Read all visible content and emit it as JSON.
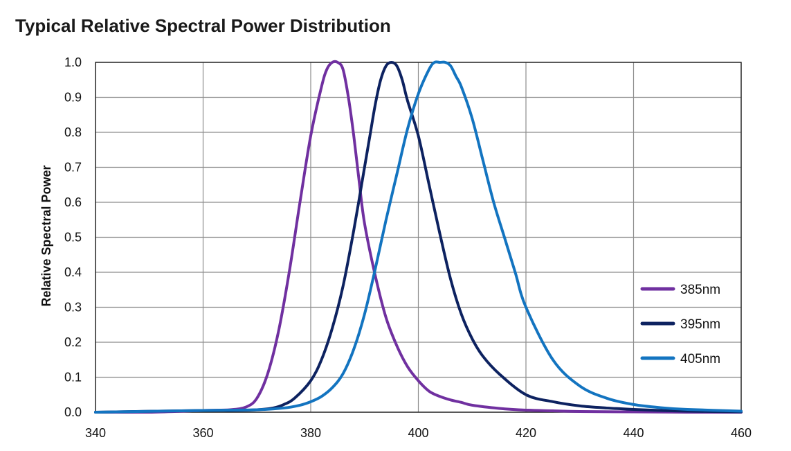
{
  "chart_data": {
    "type": "line",
    "title": "Typical Relative Spectral Power Distribution",
    "xlabel": "",
    "ylabel": "Relative Spectral Power",
    "xlim": [
      340,
      460
    ],
    "ylim": [
      0.0,
      1.0
    ],
    "x_ticks": [
      "340",
      "360",
      "380",
      "400",
      "420",
      "440",
      "460"
    ],
    "y_ticks": [
      "0.0",
      "0.1",
      "0.2",
      "0.3",
      "0.4",
      "0.5",
      "0.6",
      "0.7",
      "0.8",
      "0.9",
      "1.0"
    ],
    "grid": true,
    "legend_position": "right",
    "series": [
      {
        "name": "385nm",
        "color": "#7030A0",
        "x": [
          340,
          350,
          360,
          365,
          368,
          370,
          372,
          374,
          376,
          378,
          380,
          382,
          383,
          384,
          385,
          386,
          387,
          388,
          389,
          390,
          392,
          394,
          396,
          398,
          400,
          402,
          404,
          406,
          408,
          410,
          415,
          420,
          425,
          430,
          440,
          450,
          460
        ],
        "y": [
          0.0,
          0.0,
          0.005,
          0.007,
          0.015,
          0.04,
          0.11,
          0.23,
          0.4,
          0.6,
          0.79,
          0.93,
          0.98,
          1.0,
          1.0,
          0.98,
          0.9,
          0.79,
          0.66,
          0.54,
          0.39,
          0.27,
          0.19,
          0.13,
          0.09,
          0.06,
          0.045,
          0.035,
          0.028,
          0.02,
          0.011,
          0.006,
          0.004,
          0.002,
          0.001,
          0.0,
          0.0
        ]
      },
      {
        "name": "395nm",
        "color": "#0D2260",
        "x": [
          340,
          360,
          365,
          370,
          373,
          375,
          377,
          380,
          382,
          384,
          386,
          388,
          390,
          391,
          392,
          393,
          394,
          395,
          396,
          397,
          398,
          400,
          402,
          404,
          406,
          408,
          410,
          412,
          415,
          420,
          425,
          430,
          435,
          440,
          445,
          450,
          460
        ],
        "y": [
          0.0,
          0.005,
          0.005,
          0.007,
          0.012,
          0.022,
          0.04,
          0.09,
          0.15,
          0.24,
          0.36,
          0.52,
          0.7,
          0.79,
          0.88,
          0.95,
          0.99,
          1.0,
          0.99,
          0.95,
          0.89,
          0.79,
          0.65,
          0.51,
          0.38,
          0.28,
          0.21,
          0.16,
          0.11,
          0.05,
          0.03,
          0.018,
          0.012,
          0.008,
          0.005,
          0.003,
          0.001
        ]
      },
      {
        "name": "405nm",
        "color": "#1374C0",
        "x": [
          340,
          360,
          370,
          375,
          378,
          380,
          382,
          384,
          386,
          388,
          390,
          392,
          394,
          396,
          398,
          400,
          402,
          403,
          404,
          405,
          406,
          407,
          408,
          410,
          412,
          414,
          416,
          418,
          420,
          425,
          430,
          435,
          440,
          445,
          450,
          460
        ],
        "y": [
          0.0,
          0.005,
          0.007,
          0.012,
          0.02,
          0.03,
          0.045,
          0.07,
          0.11,
          0.18,
          0.28,
          0.41,
          0.55,
          0.68,
          0.81,
          0.91,
          0.98,
          1.0,
          1.0,
          1.0,
          0.99,
          0.96,
          0.93,
          0.84,
          0.72,
          0.6,
          0.5,
          0.4,
          0.3,
          0.15,
          0.075,
          0.04,
          0.022,
          0.013,
          0.008,
          0.003
        ]
      }
    ]
  }
}
